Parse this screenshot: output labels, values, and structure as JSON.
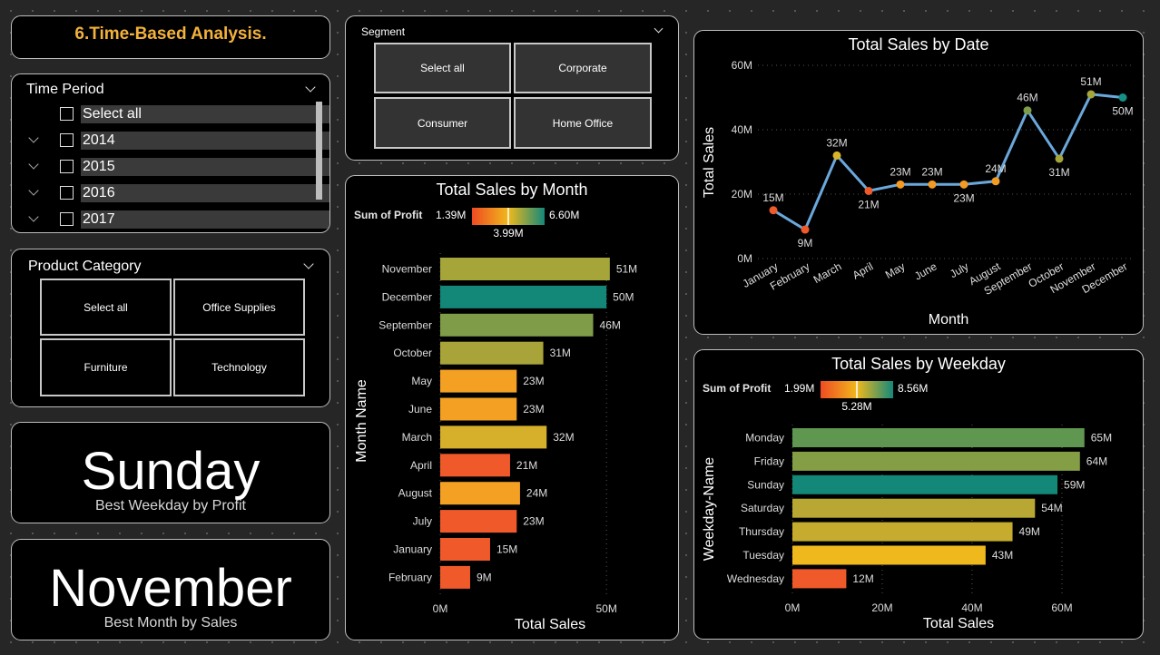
{
  "page_title": "6.Time-Based Analysis.",
  "time_period": {
    "header": "Time Period",
    "items": [
      {
        "label": "Select all",
        "expandable": false
      },
      {
        "label": "2014",
        "expandable": true
      },
      {
        "label": "2015",
        "expandable": true
      },
      {
        "label": "2016",
        "expandable": true
      },
      {
        "label": "2017",
        "expandable": true
      }
    ]
  },
  "product_category": {
    "header": "Product Category",
    "options": [
      "Select all",
      "Office Supplies",
      "Furniture",
      "Technology"
    ]
  },
  "segment": {
    "header": "Segment",
    "options": [
      "Select all",
      "Corporate",
      "Consumer",
      "Home Office"
    ]
  },
  "kpi_weekday": {
    "value": "Sunday",
    "label": "Best Weekday by Profit"
  },
  "kpi_month": {
    "value": "November",
    "label": "Best Month by Sales"
  },
  "colors": {
    "accent_title": "#f3b23c",
    "line": "#6aa8dc",
    "gradient_low": "#ef4b22",
    "gradient_mid": "#f0b81c",
    "gradient_high": "#13897a"
  },
  "chart_data": [
    {
      "type": "line",
      "title": "Total Sales by Date",
      "xlabel": "Month",
      "ylabel": "Total Sales",
      "x": [
        "January",
        "February",
        "March",
        "April",
        "May",
        "June",
        "July",
        "August",
        "September",
        "October",
        "November",
        "December"
      ],
      "values": [
        15,
        9,
        32,
        21,
        23,
        23,
        23,
        24,
        46,
        31,
        51,
        50
      ],
      "data_labels": [
        "15M",
        "9M",
        "32M",
        "21M",
        "23M",
        "23M",
        "23M",
        "24M",
        "46M",
        "31M",
        "51M",
        "50M"
      ],
      "point_colors": [
        "#ee5a2a",
        "#ee5a2a",
        "#d8b528",
        "#ee5a2a",
        "#f39a24",
        "#f39a24",
        "#f39a24",
        "#f39a24",
        "#7f9c48",
        "#a6a53a",
        "#a6a53a",
        "#169086"
      ],
      "yticks": [
        "0M",
        "20M",
        "40M",
        "60M"
      ],
      "ylim": [
        0,
        60
      ],
      "grid": true
    },
    {
      "type": "bar",
      "orientation": "horizontal",
      "title": "Total Sales by Month",
      "xlabel": "Total Sales",
      "ylabel": "Month Name",
      "legend": {
        "title": "Sum of Profit",
        "min": "1.39M",
        "mid": "3.99M",
        "max": "6.60M"
      },
      "categories": [
        "November",
        "December",
        "September",
        "October",
        "May",
        "June",
        "March",
        "April",
        "August",
        "July",
        "January",
        "February"
      ],
      "values": [
        51,
        50,
        46,
        31,
        23,
        23,
        32,
        21,
        24,
        23,
        15,
        9
      ],
      "data_labels": [
        "51M",
        "50M",
        "46M",
        "31M",
        "23M",
        "23M",
        "32M",
        "21M",
        "24M",
        "23M",
        "15M",
        "9M"
      ],
      "bar_colors": [
        "#a6a53a",
        "#138778",
        "#7f9c48",
        "#a8a43a",
        "#f4a022",
        "#f4a022",
        "#d6b02a",
        "#f05a2a",
        "#f4a022",
        "#f05a2a",
        "#f05a2a",
        "#f05a2a"
      ],
      "xticks": [
        "0M",
        "50M"
      ],
      "xlim": [
        0,
        53.5
      ]
    },
    {
      "type": "bar",
      "orientation": "horizontal",
      "title": "Total Sales by Weekday",
      "xlabel": "Total Sales",
      "ylabel": "Weekday-Name",
      "legend": {
        "title": "Sum of Profit",
        "min": "1.99M",
        "mid": "5.28M",
        "max": "8.56M"
      },
      "categories": [
        "Monday",
        "Friday",
        "Sunday",
        "Saturday",
        "Thursday",
        "Tuesday",
        "Wednesday"
      ],
      "values": [
        65,
        64,
        59,
        54,
        49,
        43,
        12
      ],
      "data_labels": [
        "65M",
        "64M",
        "59M",
        "54M",
        "49M",
        "43M",
        "12M"
      ],
      "bar_colors": [
        "#5f9650",
        "#849e45",
        "#138778",
        "#b8a733",
        "#c6ac2e",
        "#efb91e",
        "#f05a2a"
      ],
      "xticks": [
        "0M",
        "20M",
        "40M",
        "60M"
      ],
      "xlim": [
        0,
        60
      ]
    }
  ]
}
